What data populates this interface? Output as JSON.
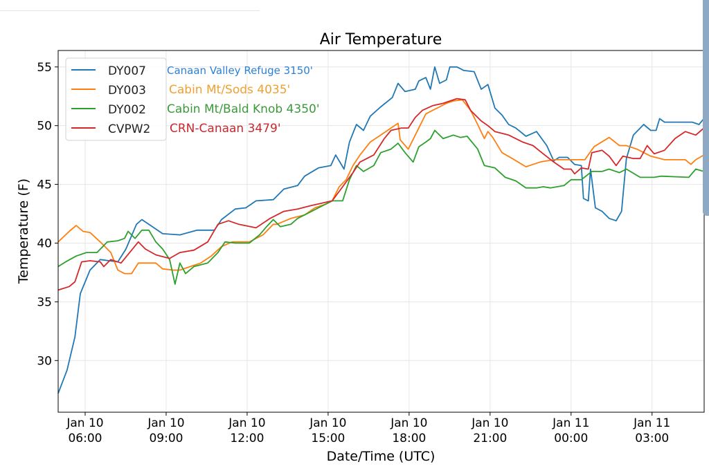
{
  "chart_data": {
    "type": "line",
    "title": "Air Temperature",
    "xlabel": "Date/Time (UTC)",
    "ylabel": "Temperature (F)",
    "x_units": "hours since Jan 10 05:00 UTC",
    "xlim": [
      0,
      23.93
    ],
    "ylim": [
      25.6,
      56.4
    ],
    "grid": true,
    "legend_placement": "top-left",
    "yticks": [
      30,
      35,
      40,
      45,
      50,
      55
    ],
    "xticks": [
      {
        "x": 1,
        "line1": "Jan 10",
        "line2": "06:00"
      },
      {
        "x": 4,
        "line1": "Jan 10",
        "line2": "09:00"
      },
      {
        "x": 7,
        "line1": "Jan 10",
        "line2": "12:00"
      },
      {
        "x": 10,
        "line1": "Jan 10",
        "line2": "15:00"
      },
      {
        "x": 13,
        "line1": "Jan 10",
        "line2": "18:00"
      },
      {
        "x": 16,
        "line1": "Jan 10",
        "line2": "21:00"
      },
      {
        "x": 19,
        "line1": "Jan 11",
        "line2": "00:00"
      },
      {
        "x": 22,
        "line1": "Jan 11",
        "line2": "03:00"
      }
    ],
    "series": [
      {
        "name": "DY007",
        "color": "#1f77b4",
        "annotation": "Canaan Valley Refuge 3150'",
        "annotation_color": "#2b7fd6",
        "points": [
          [
            0,
            27.2
          ],
          [
            0.33,
            29.2
          ],
          [
            0.62,
            32
          ],
          [
            0.82,
            35.7
          ],
          [
            1.18,
            37.7
          ],
          [
            1.56,
            38.6
          ],
          [
            2.21,
            38.4
          ],
          [
            2.51,
            39.5
          ],
          [
            2.9,
            41.6
          ],
          [
            3.1,
            42
          ],
          [
            3.49,
            41.4
          ],
          [
            3.87,
            40.8
          ],
          [
            4.51,
            40.7
          ],
          [
            5.15,
            41.1
          ],
          [
            5.79,
            41.1
          ],
          [
            6.05,
            42
          ],
          [
            6.56,
            42.9
          ],
          [
            6.95,
            43
          ],
          [
            7.33,
            43.6
          ],
          [
            7.97,
            43.7
          ],
          [
            8.36,
            44.6
          ],
          [
            8.87,
            44.9
          ],
          [
            9.13,
            45.7
          ],
          [
            9.64,
            46.4
          ],
          [
            10.1,
            46.6
          ],
          [
            10.28,
            47.5
          ],
          [
            10.59,
            46.3
          ],
          [
            10.79,
            48.6
          ],
          [
            11.05,
            50.1
          ],
          [
            11.31,
            49.6
          ],
          [
            11.56,
            50.8
          ],
          [
            11.95,
            51.6
          ],
          [
            12.38,
            52.4
          ],
          [
            12.59,
            53.6
          ],
          [
            12.85,
            52.9
          ],
          [
            13.23,
            53.1
          ],
          [
            13.36,
            53.8
          ],
          [
            13.62,
            54.1
          ],
          [
            13.79,
            53.1
          ],
          [
            13.95,
            55
          ],
          [
            14.13,
            53.6
          ],
          [
            14.38,
            53.9
          ],
          [
            14.51,
            55
          ],
          [
            14.77,
            55
          ],
          [
            15.03,
            54.7
          ],
          [
            15.41,
            54.6
          ],
          [
            15.67,
            53.1
          ],
          [
            15.92,
            53.5
          ],
          [
            16.18,
            51.5
          ],
          [
            16.44,
            50.9
          ],
          [
            16.69,
            50.1
          ],
          [
            16.95,
            49.8
          ],
          [
            17.33,
            49.1
          ],
          [
            17.72,
            49.5
          ],
          [
            18.1,
            48.3
          ],
          [
            18.36,
            47
          ],
          [
            18.56,
            47.3
          ],
          [
            18.87,
            47.3
          ],
          [
            19.13,
            46.7
          ],
          [
            19.38,
            46.6
          ],
          [
            19.46,
            43.8
          ],
          [
            19.64,
            43.6
          ],
          [
            19.72,
            46.3
          ],
          [
            19.9,
            43
          ],
          [
            20.15,
            42.7
          ],
          [
            20.41,
            42.1
          ],
          [
            20.67,
            41.9
          ],
          [
            20.87,
            42.7
          ],
          [
            21.05,
            47.2
          ],
          [
            21.31,
            49.2
          ],
          [
            21.69,
            50.1
          ],
          [
            21.95,
            49.6
          ],
          [
            22.15,
            49.6
          ],
          [
            22.28,
            50.6
          ],
          [
            22.46,
            50.3
          ],
          [
            23.49,
            50.3
          ],
          [
            23.74,
            50.1
          ],
          [
            23.92,
            50.6
          ]
        ]
      },
      {
        "name": "DY003",
        "color": "#ff7f0e",
        "annotation": "Cabin Mt/Sods 4035'",
        "annotation_color": "#f0a030",
        "points": [
          [
            0,
            40.1
          ],
          [
            0.41,
            41
          ],
          [
            0.67,
            41.5
          ],
          [
            0.92,
            41
          ],
          [
            1.18,
            40.9
          ],
          [
            1.56,
            40.1
          ],
          [
            1.95,
            39.2
          ],
          [
            2.21,
            37.7
          ],
          [
            2.46,
            37.4
          ],
          [
            2.72,
            37.4
          ],
          [
            2.97,
            38.3
          ],
          [
            3.62,
            38.3
          ],
          [
            3.87,
            37.8
          ],
          [
            4.26,
            37.7
          ],
          [
            4.51,
            37.7
          ],
          [
            4.9,
            38
          ],
          [
            5.28,
            38.3
          ],
          [
            5.67,
            38.9
          ],
          [
            6.05,
            39.7
          ],
          [
            6.44,
            40.1
          ],
          [
            7.08,
            40.1
          ],
          [
            7.59,
            40.7
          ],
          [
            7.97,
            41.6
          ],
          [
            8.1,
            41.6
          ],
          [
            8.62,
            42.1
          ],
          [
            9.13,
            42.4
          ],
          [
            9.51,
            43
          ],
          [
            9.9,
            43.3
          ],
          [
            10.15,
            43.6
          ],
          [
            10.41,
            44.8
          ],
          [
            10.67,
            45.4
          ],
          [
            10.92,
            46.6
          ],
          [
            11.18,
            47.5
          ],
          [
            11.56,
            48.6
          ],
          [
            11.95,
            49.2
          ],
          [
            12.33,
            49.8
          ],
          [
            12.59,
            50.2
          ],
          [
            12.67,
            48.8
          ],
          [
            12.97,
            48
          ],
          [
            13.23,
            49.2
          ],
          [
            13.62,
            51
          ],
          [
            13.87,
            51.3
          ],
          [
            14.13,
            51.6
          ],
          [
            14.38,
            51.9
          ],
          [
            14.64,
            52.1
          ],
          [
            14.97,
            52.2
          ],
          [
            15.28,
            51.3
          ],
          [
            15.54,
            50.1
          ],
          [
            15.79,
            48.9
          ],
          [
            15.92,
            49.5
          ],
          [
            16.1,
            49
          ],
          [
            16.44,
            47.7
          ],
          [
            16.82,
            47.2
          ],
          [
            17.33,
            46.5
          ],
          [
            17.85,
            46.9
          ],
          [
            18.36,
            47.1
          ],
          [
            18.87,
            47.1
          ],
          [
            19.51,
            47.1
          ],
          [
            19.85,
            48.2
          ],
          [
            20.41,
            49
          ],
          [
            20.79,
            48.3
          ],
          [
            21.05,
            48.3
          ],
          [
            21.44,
            48
          ],
          [
            21.95,
            47.4
          ],
          [
            22.46,
            47.1
          ],
          [
            23.23,
            47.1
          ],
          [
            23.44,
            46.7
          ],
          [
            23.62,
            47.1
          ],
          [
            23.92,
            47.5
          ]
        ]
      },
      {
        "name": "DY002",
        "color": "#2ca02c",
        "annotation": "Cabin Mt/Bald Knob 4350'",
        "annotation_color": "#3a9a3a",
        "points": [
          [
            0,
            38
          ],
          [
            0.28,
            38.4
          ],
          [
            0.67,
            38.9
          ],
          [
            1.05,
            39.2
          ],
          [
            1.44,
            39.2
          ],
          [
            1.82,
            40.1
          ],
          [
            2.21,
            40.2
          ],
          [
            2.46,
            40.4
          ],
          [
            2.59,
            41
          ],
          [
            2.85,
            40.4
          ],
          [
            3.1,
            41.1
          ],
          [
            3.36,
            41.1
          ],
          [
            3.62,
            40.1
          ],
          [
            3.87,
            39.5
          ],
          [
            4.13,
            38.6
          ],
          [
            4.33,
            36.5
          ],
          [
            4.51,
            38.3
          ],
          [
            4.72,
            37.4
          ],
          [
            5.03,
            38
          ],
          [
            5.54,
            38.3
          ],
          [
            5.92,
            39.2
          ],
          [
            6.18,
            40.1
          ],
          [
            6.56,
            40
          ],
          [
            7.08,
            40
          ],
          [
            7.46,
            40.7
          ],
          [
            7.72,
            41.4
          ],
          [
            7.97,
            42
          ],
          [
            8.23,
            41.4
          ],
          [
            8.62,
            41.6
          ],
          [
            8.87,
            42.1
          ],
          [
            9.13,
            42.4
          ],
          [
            9.64,
            43
          ],
          [
            10.15,
            43.6
          ],
          [
            10.54,
            43.6
          ],
          [
            10.79,
            45.4
          ],
          [
            11.05,
            46.6
          ],
          [
            11.31,
            46.1
          ],
          [
            11.69,
            46.6
          ],
          [
            11.95,
            47.7
          ],
          [
            12.33,
            48
          ],
          [
            12.59,
            48.5
          ],
          [
            12.85,
            47.7
          ],
          [
            13.15,
            46.9
          ],
          [
            13.36,
            48.2
          ],
          [
            13.62,
            48.6
          ],
          [
            13.79,
            48.9
          ],
          [
            13.95,
            49.6
          ],
          [
            14.26,
            48.9
          ],
          [
            14.64,
            49.2
          ],
          [
            14.9,
            49
          ],
          [
            15.15,
            49.1
          ],
          [
            15.54,
            48
          ],
          [
            15.79,
            46.6
          ],
          [
            16.18,
            46.4
          ],
          [
            16.56,
            45.6
          ],
          [
            16.95,
            45.3
          ],
          [
            17.33,
            44.7
          ],
          [
            17.72,
            44.7
          ],
          [
            17.97,
            44.8
          ],
          [
            18.23,
            44.7
          ],
          [
            18.74,
            44.9
          ],
          [
            19,
            45.4
          ],
          [
            19.38,
            45.4
          ],
          [
            19.77,
            46.1
          ],
          [
            20.15,
            46.1
          ],
          [
            20.41,
            46.3
          ],
          [
            20.79,
            46
          ],
          [
            21.05,
            46.3
          ],
          [
            21.56,
            45.6
          ],
          [
            22.08,
            45.6
          ],
          [
            22.33,
            45.7
          ],
          [
            23.36,
            45.6
          ],
          [
            23.62,
            46.3
          ],
          [
            23.92,
            46.1
          ]
        ]
      },
      {
        "name": "CVPW2",
        "color": "#d62728",
        "annotation": "CRN-Canaan 3479'",
        "annotation_color": "#c8282e",
        "points": [
          [
            0,
            36
          ],
          [
            0.41,
            36.3
          ],
          [
            0.62,
            36.7
          ],
          [
            0.87,
            38.4
          ],
          [
            1.18,
            38.5
          ],
          [
            1.56,
            38.4
          ],
          [
            1.69,
            38
          ],
          [
            1.95,
            38.6
          ],
          [
            2.33,
            38.3
          ],
          [
            2.97,
            40.1
          ],
          [
            3.23,
            39.5
          ],
          [
            3.62,
            39
          ],
          [
            4.13,
            38.7
          ],
          [
            4.51,
            39.2
          ],
          [
            5.03,
            39.4
          ],
          [
            5.54,
            40.1
          ],
          [
            5.92,
            41.6
          ],
          [
            6.31,
            41.9
          ],
          [
            6.69,
            41.6
          ],
          [
            7.33,
            41.3
          ],
          [
            7.85,
            42.1
          ],
          [
            8.36,
            42.7
          ],
          [
            8.87,
            42.9
          ],
          [
            9.38,
            43.2
          ],
          [
            9.77,
            43.4
          ],
          [
            10.15,
            43.6
          ],
          [
            10.54,
            44.8
          ],
          [
            10.92,
            46
          ],
          [
            11.18,
            46.9
          ],
          [
            11.69,
            47.5
          ],
          [
            12.08,
            48.9
          ],
          [
            12.33,
            49.6
          ],
          [
            12.72,
            49.8
          ],
          [
            12.97,
            49.8
          ],
          [
            13.23,
            50.7
          ],
          [
            13.49,
            51.3
          ],
          [
            13.87,
            51.7
          ],
          [
            14.26,
            51.9
          ],
          [
            14.77,
            52.3
          ],
          [
            15.08,
            52.2
          ],
          [
            15.28,
            51.3
          ],
          [
            15.67,
            50.4
          ],
          [
            15.92,
            50
          ],
          [
            16.18,
            49.5
          ],
          [
            16.69,
            49.2
          ],
          [
            17.21,
            48.6
          ],
          [
            17.59,
            48.3
          ],
          [
            17.97,
            47.6
          ],
          [
            18.36,
            46.9
          ],
          [
            18.74,
            46.3
          ],
          [
            19,
            46.3
          ],
          [
            19.13,
            45.9
          ],
          [
            19.38,
            46.4
          ],
          [
            19.64,
            46.3
          ],
          [
            19.77,
            47.7
          ],
          [
            20.15,
            47.9
          ],
          [
            20.41,
            47.4
          ],
          [
            20.67,
            46.6
          ],
          [
            20.92,
            47.4
          ],
          [
            21.31,
            47.2
          ],
          [
            21.56,
            47.2
          ],
          [
            21.82,
            48.3
          ],
          [
            22.08,
            47.6
          ],
          [
            22.46,
            47.9
          ],
          [
            22.85,
            48.9
          ],
          [
            23.23,
            49.5
          ],
          [
            23.62,
            49.2
          ],
          [
            23.92,
            49.8
          ]
        ]
      }
    ]
  }
}
